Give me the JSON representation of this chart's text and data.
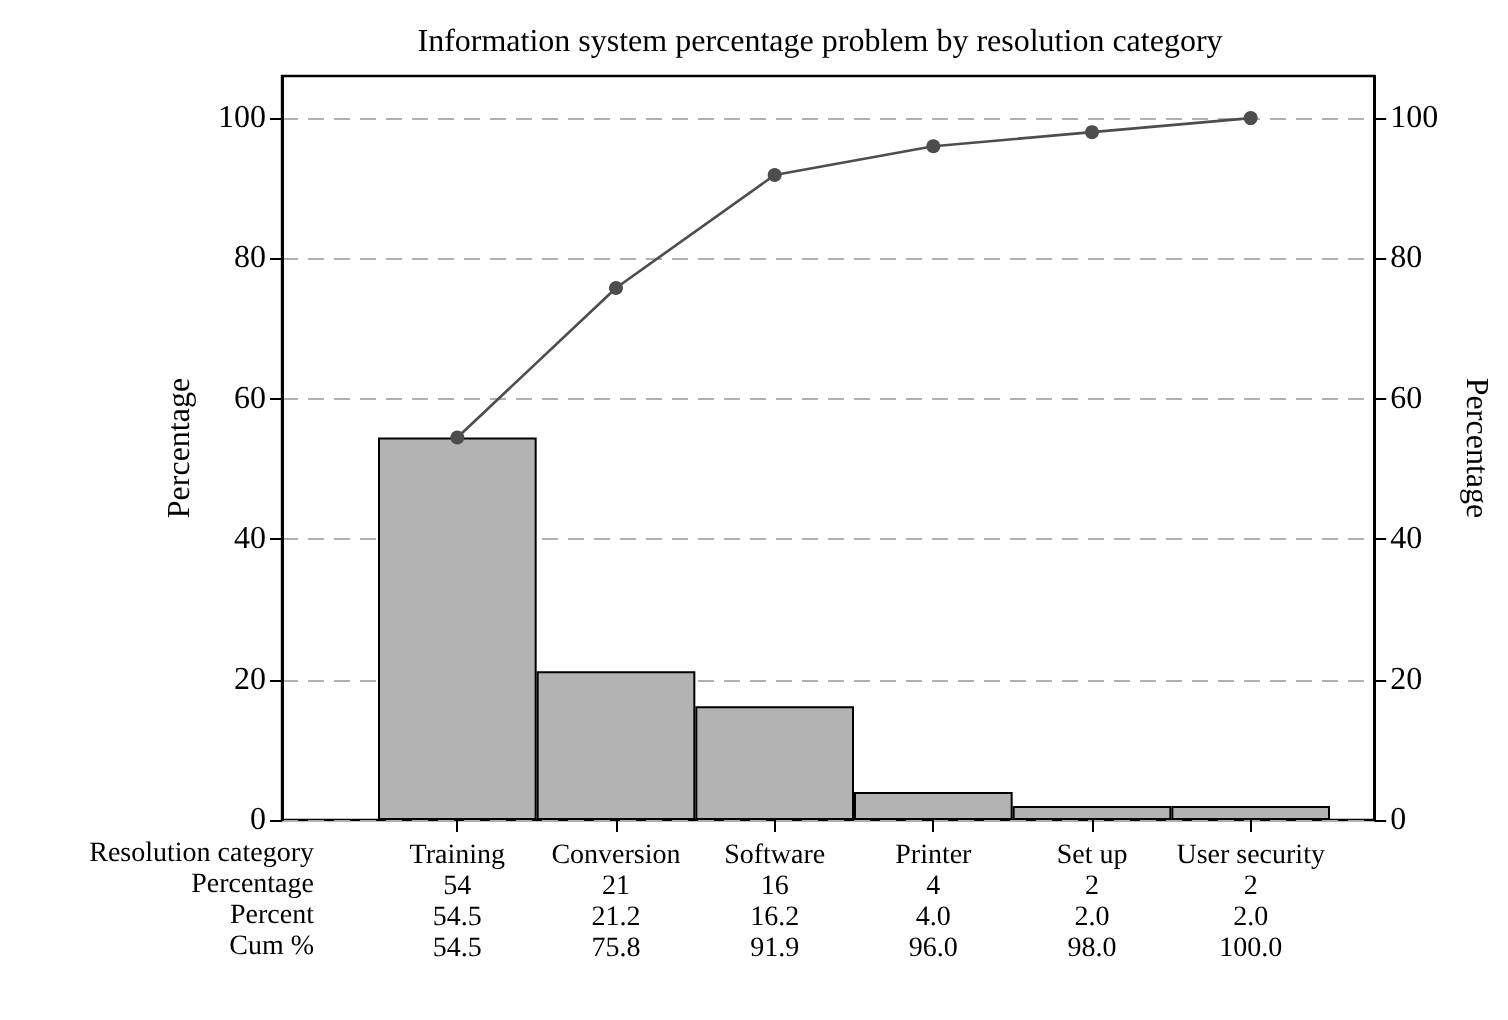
{
  "chart_data": {
    "type": "bar",
    "title": "Information system percentage problem by resolution category",
    "xlabel": "Resolution category",
    "ylabel": "Percentage",
    "y2label": "Percentage",
    "categories": [
      "Training",
      "Conversion",
      "Software",
      "Printer",
      "Set up",
      "User security"
    ],
    "series": [
      {
        "color": "#b3b3b3",
        "values": [
          54.5,
          21.2,
          16.2,
          4.0,
          2.0,
          2.0
        ],
        "value_labels": [
          "54.5",
          "21.2",
          "16.2",
          "4.0",
          "2.0",
          "2.0"
        ]
      },
      {
        "type": "line",
        "color": "#4d4d4d",
        "values": [
          54.5,
          75.8,
          91.9,
          96.0,
          98.0,
          100.0
        ],
        "value_labels": [
          "54.5",
          "75.8",
          "91.9",
          "96.0",
          "98.0",
          "100.0"
        ]
      }
    ],
    "annotations": [
      "Percentage",
      "Percent",
      "Cum %",
      "54",
      "21",
      "16",
      "4",
      "2",
      "2"
    ],
    "ylim": [
      0,
      106
    ],
    "yticks": [
      0,
      20,
      40,
      60,
      80,
      100
    ],
    "y2lim": [
      0,
      106
    ],
    "y2ticks": [
      0,
      20,
      40,
      60,
      80,
      100
    ],
    "grid": "y",
    "marker": "circle",
    "line_style": "solid"
  }
}
